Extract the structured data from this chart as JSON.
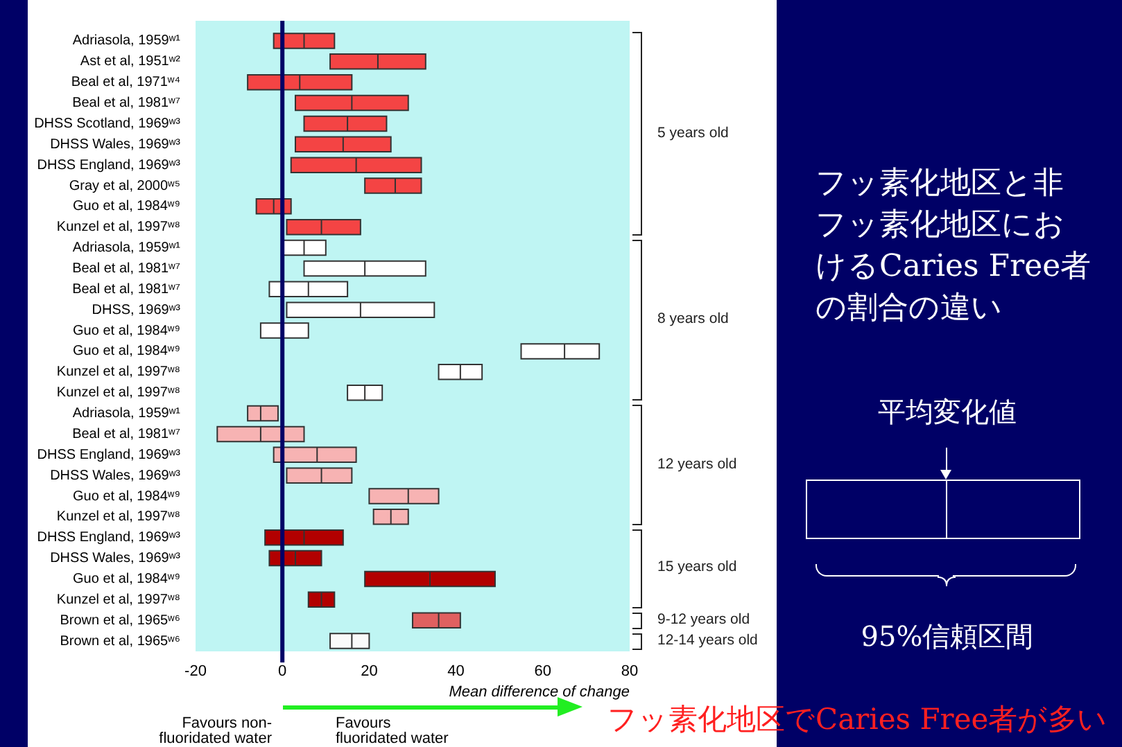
{
  "chart_data": {
    "type": "box",
    "orientation": "horizontal",
    "title": "フッ素化地区と非フッ素化地区におけるCaries Free者の割合の違い",
    "xlabel": "Mean difference of change",
    "categories": [
      "Adriasola, 1959ʷ¹",
      "Ast et al, 1951ʷ²",
      "Beal et al, 1971ʷ⁴",
      "Beal et al, 1981ʷ⁷",
      "DHSS Scotland, 1969ʷ³",
      "DHSS Wales, 1969ʷ³",
      "DHSS England, 1969ʷ³",
      "Gray et al, 2000ʷ⁵",
      "Guo et al, 1984ʷ⁹",
      "Kunzel et al, 1997ʷ⁸",
      "Adriasola, 1959ʷ¹",
      "Beal et al, 1981ʷ⁷",
      "Beal et al, 1981ʷ⁷",
      "DHSS, 1969ʷ³",
      "Guo et al, 1984ʷ⁹",
      "Guo et al, 1984ʷ⁹",
      "Kunzel et al, 1997ʷ⁸",
      "Kunzel et al, 1997ʷ⁸",
      "Adriasola, 1959ʷ¹",
      "Beal et al, 1981ʷ⁷",
      "DHSS England, 1969ʷ³",
      "DHSS Wales, 1969ʷ³",
      "Guo et al, 1984ʷ⁹",
      "Kunzel et al, 1997ʷ⁸",
      "DHSS England, 1969ʷ³",
      "DHSS Wales, 1969ʷ³",
      "Guo et al, 1984ʷ⁹",
      "Kunzel et al, 1997ʷ⁸",
      "Brown et al, 1965ʷ⁶",
      "Brown et al, 1965ʷ⁶"
    ],
    "boxes": [
      {
        "low": -2,
        "q1": -2,
        "median": 5,
        "q3": 12,
        "high": 12
      },
      {
        "low": 11,
        "q1": 11,
        "median": 22,
        "q3": 33,
        "high": 33
      },
      {
        "low": -8,
        "q1": -8,
        "median": 4,
        "q3": 16,
        "high": 16
      },
      {
        "low": 3,
        "q1": 3,
        "median": 16,
        "q3": 29,
        "high": 29
      },
      {
        "low": 5,
        "q1": 5,
        "median": 15,
        "q3": 24,
        "high": 24
      },
      {
        "low": 3,
        "q1": 3,
        "median": 14,
        "q3": 25,
        "high": 25
      },
      {
        "low": 2,
        "q1": 2,
        "median": 17,
        "q3": 32,
        "high": 32
      },
      {
        "low": 19,
        "q1": 19,
        "median": 26,
        "q3": 32,
        "high": 32
      },
      {
        "low": -6,
        "q1": -6,
        "median": -2,
        "q3": 2,
        "high": 2
      },
      {
        "low": 1,
        "q1": 1,
        "median": 9,
        "q3": 18,
        "high": 18
      },
      {
        "low": 0,
        "q1": 0,
        "median": 5,
        "q3": 10,
        "high": 10
      },
      {
        "low": 5,
        "q1": 5,
        "median": 19,
        "q3": 33,
        "high": 33
      },
      {
        "low": -3,
        "q1": -3,
        "median": 6,
        "q3": 15,
        "high": 15
      },
      {
        "low": 1,
        "q1": 1,
        "median": 18,
        "q3": 35,
        "high": 35
      },
      {
        "low": -5,
        "q1": -5,
        "median": 0,
        "q3": 6,
        "high": 6
      },
      {
        "low": 55,
        "q1": 55,
        "median": 65,
        "q3": 73,
        "high": 73
      },
      {
        "low": 36,
        "q1": 36,
        "median": 41,
        "q3": 46,
        "high": 46
      },
      {
        "low": 15,
        "q1": 15,
        "median": 19,
        "q3": 23,
        "high": 23
      },
      {
        "low": -8,
        "q1": -8,
        "median": -5,
        "q3": -1,
        "high": -1
      },
      {
        "low": -15,
        "q1": -15,
        "median": -5,
        "q3": 5,
        "high": 5
      },
      {
        "low": -2,
        "q1": -2,
        "median": 8,
        "q3": 17,
        "high": 17
      },
      {
        "low": 1,
        "q1": 1,
        "median": 9,
        "q3": 16,
        "high": 16
      },
      {
        "low": 20,
        "q1": 20,
        "median": 29,
        "q3": 36,
        "high": 36
      },
      {
        "low": 21,
        "q1": 21,
        "median": 25,
        "q3": 29,
        "high": 29
      },
      {
        "low": -4,
        "q1": -4,
        "median": 5,
        "q3": 14,
        "high": 14
      },
      {
        "low": -3,
        "q1": -3,
        "median": 3,
        "q3": 9,
        "high": 9
      },
      {
        "low": 19,
        "q1": 19,
        "median": 34,
        "q3": 49,
        "high": 49
      },
      {
        "low": 6,
        "q1": 6,
        "median": 9,
        "q3": 12,
        "high": 12
      },
      {
        "low": 30,
        "q1": 30,
        "median": 36,
        "q3": 41,
        "high": 41
      },
      {
        "low": 11,
        "q1": 11,
        "median": 16,
        "q3": 20,
        "high": 20
      }
    ],
    "colors": [
      "#f44444",
      "#f44444",
      "#f44444",
      "#f44444",
      "#f44444",
      "#f44444",
      "#f44444",
      "#f44444",
      "#f44444",
      "#f44444",
      "#ffffff",
      "#ffffff",
      "#ffffff",
      "#ffffff",
      "#ffffff",
      "#ffffff",
      "#ffffff",
      "#ffffff",
      "#f7b3b3",
      "#f7b3b3",
      "#f7b3b3",
      "#f7b3b3",
      "#f7b3b3",
      "#f7b3b3",
      "#b20000",
      "#b20000",
      "#b20000",
      "#b20000",
      "#e06060",
      "#fafafa"
    ],
    "xlim": [
      -20,
      80
    ],
    "xticks": [
      -20,
      0,
      20,
      40,
      60,
      80
    ],
    "ref_lines": [
      {
        "axis": "x",
        "value": 0,
        "color": "#000066"
      }
    ],
    "annotations": [
      "5 years old",
      "8 years old",
      "12 years old",
      "15 years old",
      "9-12 years old",
      "12-14 years old",
      "Favours non-fluoridated water",
      "Favours fluoridated water",
      "平均変化値",
      "95%信頼区間",
      "フッ素化地区でCaries Free者が多い"
    ]
  }
}
